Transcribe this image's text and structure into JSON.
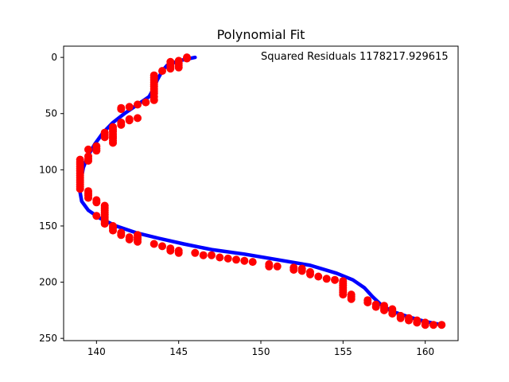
{
  "chart_data": {
    "type": "scatter",
    "title": "Polynomial Fit",
    "annotation": "Squared Residuals 1178217.929615",
    "xlabel": "",
    "ylabel": "",
    "xlim": [
      138,
      162
    ],
    "ylim": [
      252,
      -10
    ],
    "y_inverted": true,
    "grid": false,
    "xticks": [
      140,
      145,
      150,
      155,
      160
    ],
    "yticks": [
      0,
      50,
      100,
      150,
      200,
      250
    ],
    "series": [
      {
        "kind": "scatter",
        "color": "#ff0000",
        "points": [
          [
            145.5,
            0
          ],
          [
            145.5,
            1
          ],
          [
            145,
            3
          ],
          [
            145,
            5
          ],
          [
            145,
            7
          ],
          [
            145,
            9
          ],
          [
            144.5,
            4
          ],
          [
            144.5,
            6
          ],
          [
            144.5,
            8
          ],
          [
            144.5,
            10
          ],
          [
            144,
            12
          ],
          [
            143.5,
            16
          ],
          [
            143.5,
            18
          ],
          [
            143.5,
            20
          ],
          [
            143.5,
            22
          ],
          [
            143.5,
            24
          ],
          [
            143.5,
            26
          ],
          [
            143.5,
            28
          ],
          [
            143.5,
            30
          ],
          [
            143.5,
            32
          ],
          [
            143.5,
            35
          ],
          [
            143.5,
            38
          ],
          [
            143,
            40
          ],
          [
            142.5,
            42
          ],
          [
            142,
            44
          ],
          [
            141.5,
            45
          ],
          [
            141.5,
            46
          ],
          [
            142.5,
            54
          ],
          [
            142,
            56
          ],
          [
            142,
            55
          ],
          [
            141.5,
            58
          ],
          [
            141.5,
            60
          ],
          [
            141,
            62
          ],
          [
            141,
            64
          ],
          [
            141,
            66
          ],
          [
            141,
            68
          ],
          [
            141,
            70
          ],
          [
            141,
            72
          ],
          [
            141,
            74
          ],
          [
            141,
            76
          ],
          [
            140.5,
            67
          ],
          [
            140.5,
            69
          ],
          [
            140.5,
            71
          ],
          [
            140,
            79
          ],
          [
            140,
            81
          ],
          [
            140,
            83
          ],
          [
            139.5,
            82
          ],
          [
            139.5,
            88
          ],
          [
            139.5,
            90
          ],
          [
            139.5,
            92
          ],
          [
            139,
            91
          ],
          [
            139,
            93
          ],
          [
            139,
            95
          ],
          [
            139,
            97
          ],
          [
            139,
            99
          ],
          [
            139,
            101
          ],
          [
            139,
            103
          ],
          [
            139,
            105
          ],
          [
            139,
            107
          ],
          [
            139,
            109
          ],
          [
            139,
            111
          ],
          [
            139,
            113
          ],
          [
            139,
            115
          ],
          [
            139,
            117
          ],
          [
            139.5,
            119
          ],
          [
            139.5,
            121
          ],
          [
            139.5,
            123
          ],
          [
            139.5,
            125
          ],
          [
            140,
            127
          ],
          [
            140,
            129
          ],
          [
            140.5,
            132
          ],
          [
            140.5,
            134
          ],
          [
            140.5,
            136
          ],
          [
            140.5,
            138
          ],
          [
            140.5,
            140
          ],
          [
            140.5,
            142
          ],
          [
            140.5,
            144
          ],
          [
            140.5,
            146
          ],
          [
            140.5,
            148
          ],
          [
            140,
            141
          ],
          [
            141,
            150
          ],
          [
            141,
            152
          ],
          [
            141,
            154
          ],
          [
            141.5,
            156
          ],
          [
            141.5,
            158
          ],
          [
            142,
            160
          ],
          [
            142,
            162
          ],
          [
            142.5,
            158
          ],
          [
            142.5,
            160
          ],
          [
            142.5,
            162
          ],
          [
            142.5,
            164
          ],
          [
            143.5,
            166
          ],
          [
            144,
            168
          ],
          [
            144.5,
            170
          ],
          [
            144.5,
            172
          ],
          [
            145,
            172
          ],
          [
            145,
            174
          ],
          [
            146,
            174
          ],
          [
            146.5,
            176
          ],
          [
            147,
            176
          ],
          [
            147.5,
            178
          ],
          [
            148,
            179
          ],
          [
            148.5,
            180
          ],
          [
            149,
            181
          ],
          [
            149.5,
            182
          ],
          [
            150.5,
            184
          ],
          [
            150.5,
            186
          ],
          [
            151,
            186
          ],
          [
            152,
            187
          ],
          [
            152,
            189
          ],
          [
            152.5,
            188
          ],
          [
            152.5,
            190
          ],
          [
            153,
            191
          ],
          [
            153,
            193
          ],
          [
            153.5,
            195
          ],
          [
            154,
            197
          ],
          [
            154.5,
            198
          ],
          [
            155,
            199
          ],
          [
            155,
            201
          ],
          [
            155,
            203
          ],
          [
            155,
            205
          ],
          [
            155,
            207
          ],
          [
            155,
            209
          ],
          [
            155,
            211
          ],
          [
            155.5,
            211
          ],
          [
            155.5,
            213
          ],
          [
            155.5,
            215
          ],
          [
            156.5,
            216
          ],
          [
            156.5,
            218
          ],
          [
            157,
            220
          ],
          [
            157,
            222
          ],
          [
            157.5,
            221
          ],
          [
            157.5,
            223
          ],
          [
            157.5,
            225
          ],
          [
            158,
            224
          ],
          [
            158,
            226
          ],
          [
            158,
            228
          ],
          [
            158.5,
            230
          ],
          [
            158.5,
            232
          ],
          [
            159,
            232
          ],
          [
            159,
            234
          ],
          [
            159.5,
            234
          ],
          [
            159.5,
            236
          ],
          [
            160,
            236
          ],
          [
            160,
            238
          ],
          [
            160.5,
            238
          ],
          [
            161,
            238
          ]
        ]
      },
      {
        "kind": "line",
        "color": "#0000ff",
        "points": [
          [
            146,
            0
          ],
          [
            145,
            3
          ],
          [
            144.3,
            7
          ],
          [
            144,
            12
          ],
          [
            143.7,
            20
          ],
          [
            143.5,
            27
          ],
          [
            143.2,
            35
          ],
          [
            142.5,
            42
          ],
          [
            141.7,
            50
          ],
          [
            141,
            58
          ],
          [
            140.4,
            67
          ],
          [
            139.9,
            77
          ],
          [
            139.5,
            87
          ],
          [
            139.2,
            98
          ],
          [
            139.05,
            110
          ],
          [
            139,
            120
          ],
          [
            139.1,
            128
          ],
          [
            139.5,
            136
          ],
          [
            140.2,
            143
          ],
          [
            141.2,
            150
          ],
          [
            142.4,
            156
          ],
          [
            143.8,
            161
          ],
          [
            145.3,
            166
          ],
          [
            147,
            171
          ],
          [
            149,
            175
          ],
          [
            151,
            180
          ],
          [
            153,
            185
          ],
          [
            154.6,
            192
          ],
          [
            155.6,
            198
          ],
          [
            156.3,
            205
          ],
          [
            156.8,
            213
          ],
          [
            157.3,
            220
          ],
          [
            158,
            226
          ],
          [
            159,
            231
          ],
          [
            160,
            235
          ],
          [
            161,
            238
          ]
        ]
      }
    ]
  }
}
